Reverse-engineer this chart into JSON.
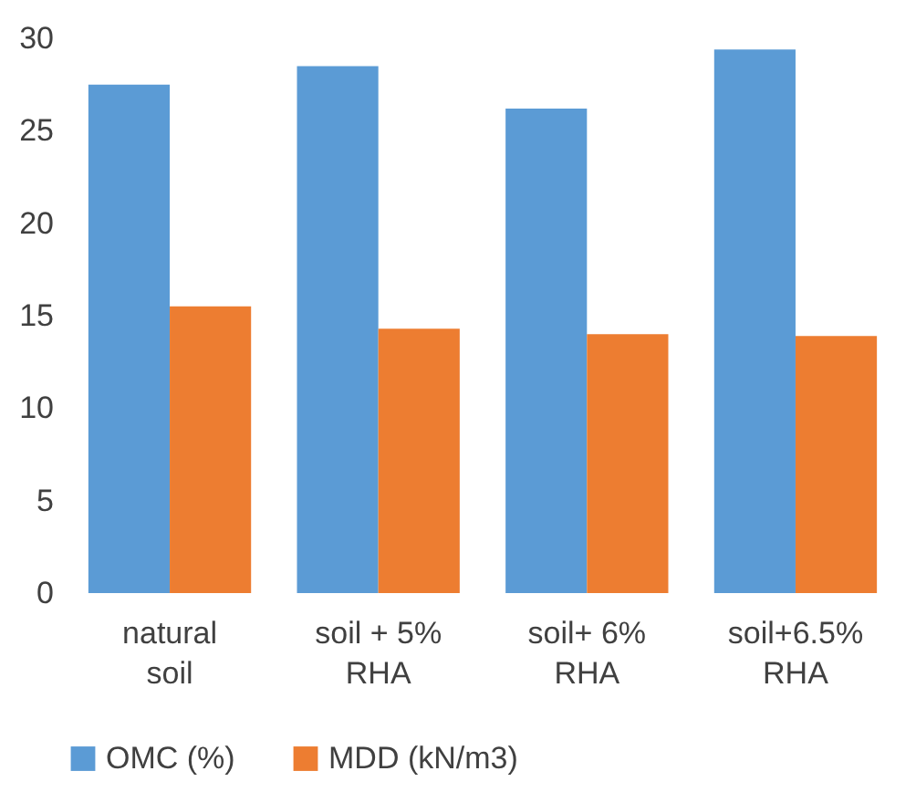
{
  "chart_data": {
    "type": "bar",
    "categories": [
      "natural soil",
      "soil + 5% RHA",
      "soil+ 6% RHA",
      "soil+6.5% RHA"
    ],
    "series": [
      {
        "name": "OMC (%)",
        "color": "#5b9bd5",
        "values": [
          27.5,
          28.5,
          26.2,
          29.4
        ]
      },
      {
        "name": "MDD (kN/m3)",
        "color": "#ed7d31",
        "values": [
          15.5,
          14.3,
          14.0,
          13.9
        ]
      }
    ],
    "ylim": [
      0,
      30
    ],
    "yticks": [
      0,
      5,
      10,
      15,
      20,
      25,
      30
    ],
    "grid": false,
    "legend": "bottom"
  }
}
